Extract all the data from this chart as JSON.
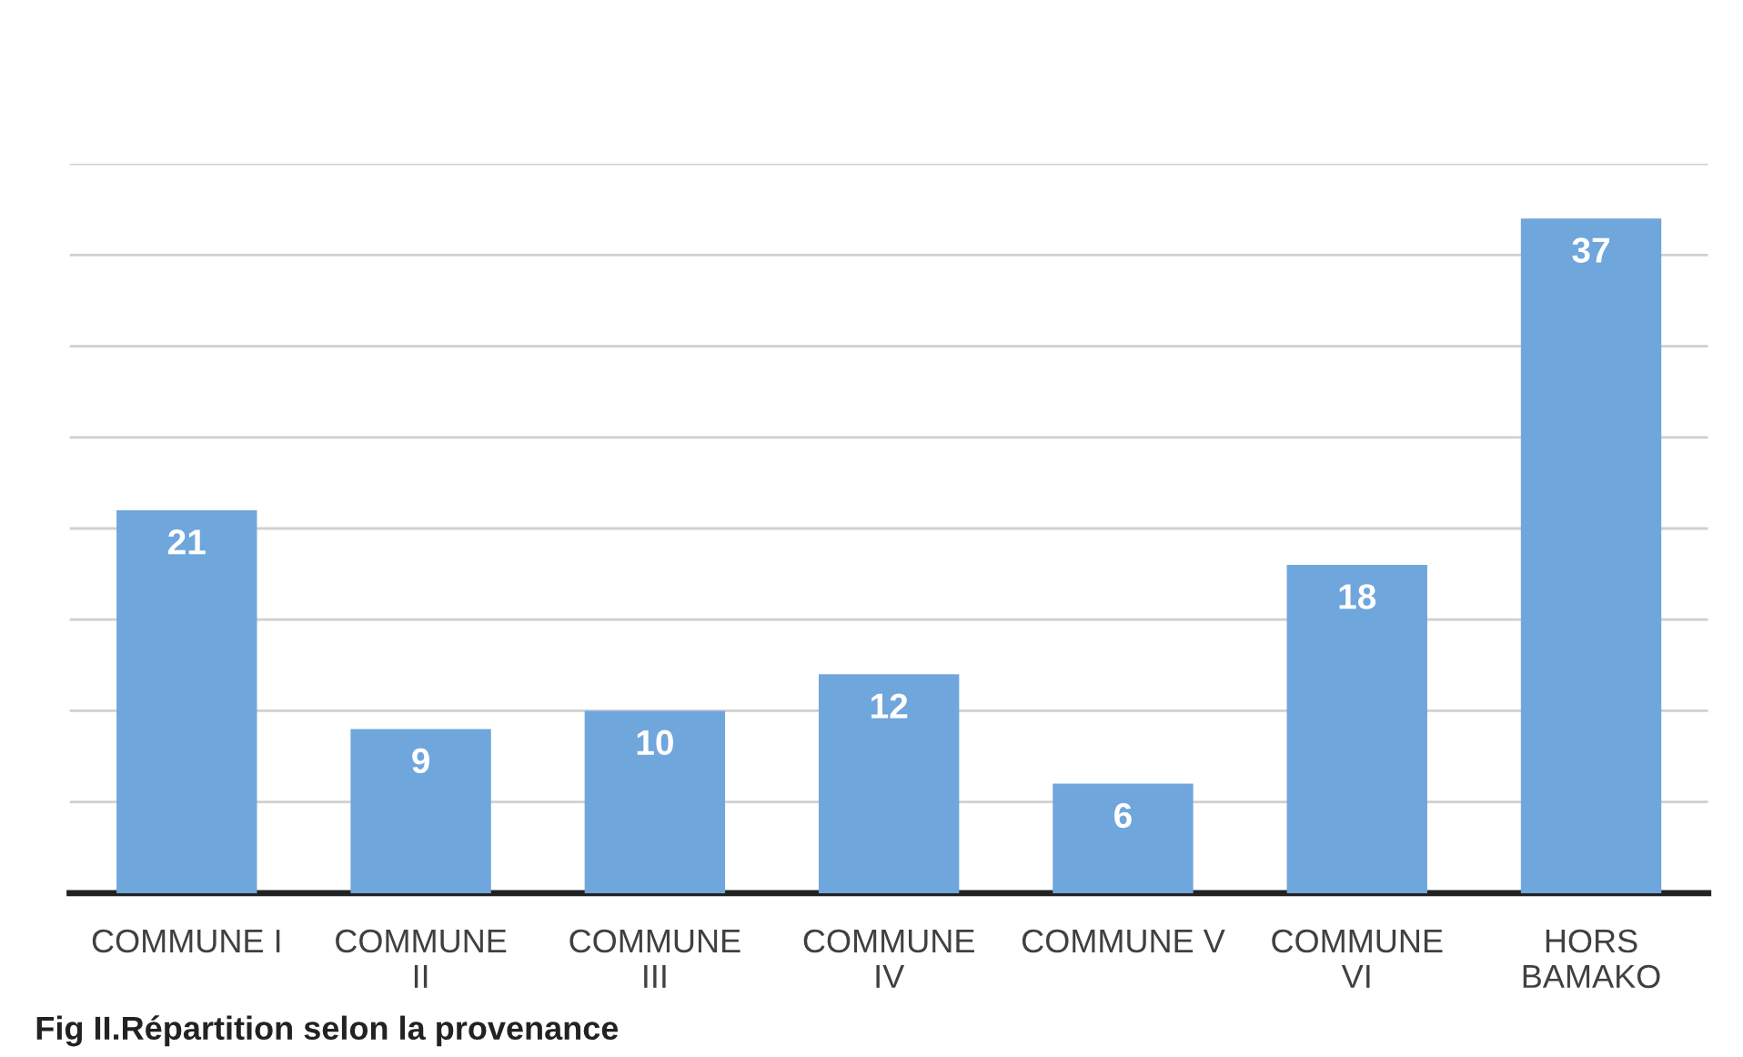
{
  "chart_data": {
    "type": "bar",
    "categories": [
      "COMMUNE I",
      "COMMUNE II",
      "COMMUNE III",
      "COMMUNE IV",
      "COMMUNE V",
      "COMMUNE VI",
      "HORS BAMAKO"
    ],
    "values": [
      21,
      9,
      10,
      12,
      6,
      18,
      37
    ],
    "color": "#6fa6dc",
    "data_labels": true,
    "ylim": [
      0,
      40
    ],
    "yticks": [
      {
        "value": 0,
        "label": null
      },
      {
        "value": 5,
        "label": null
      },
      {
        "value": 10,
        "label": null
      },
      {
        "value": 15,
        "label": null
      },
      {
        "value": 20,
        "label": null
      },
      {
        "value": 25,
        "label": null
      },
      {
        "value": 30,
        "label": null
      },
      {
        "value": 35,
        "label": null
      },
      {
        "value": 40,
        "label": null
      }
    ],
    "tick_labels": "x",
    "grid": "y",
    "annotations": [
      "Fig II.Répartition selon la provenance"
    ]
  }
}
